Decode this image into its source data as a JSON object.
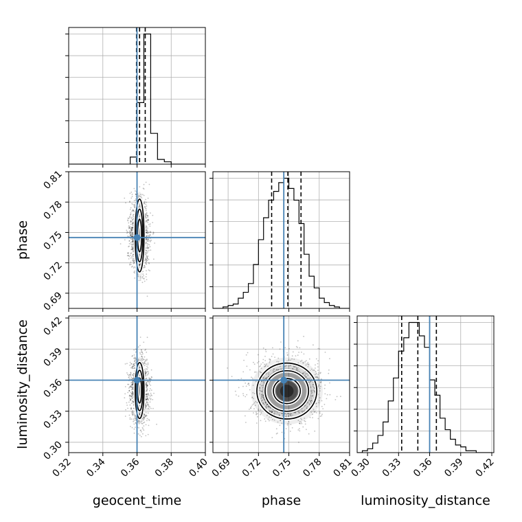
{
  "chart_data": {
    "type": "corner",
    "title": "",
    "parameters": [
      "geocent_time",
      "phase",
      "luminosity_distance"
    ],
    "ranges": {
      "geocent_time": [
        0.32,
        0.4
      ],
      "phase": [
        0.675,
        0.81
      ],
      "luminosity_distance": [
        0.29,
        0.422
      ]
    },
    "ticks": {
      "geocent_time": [
        "0.32",
        "0.34",
        "0.36",
        "0.38",
        "0.40"
      ],
      "phase": [
        "0.69",
        "0.72",
        "0.75",
        "0.78",
        "0.81"
      ],
      "luminosity_distance": [
        "0.30",
        "0.33",
        "0.36",
        "0.39",
        "0.42"
      ]
    },
    "truths": {
      "geocent_time": 0.36,
      "phase": 0.745,
      "luminosity_distance": 0.36
    },
    "quantiles": {
      "geocent_time": [
        0.3597,
        0.3615,
        0.3648
      ],
      "phase": [
        0.733,
        0.749,
        0.762
      ],
      "luminosity_distance": [
        0.333,
        0.3486,
        0.3665
      ]
    },
    "histograms": {
      "geocent_time": {
        "edges": [
          0.32,
          0.324,
          0.328,
          0.332,
          0.336,
          0.34,
          0.344,
          0.348,
          0.352,
          0.356,
          0.36,
          0.364,
          0.368,
          0.372,
          0.376,
          0.38,
          0.384,
          0.388,
          0.392,
          0.396,
          0.4
        ],
        "counts": [
          0,
          0,
          0,
          0,
          0,
          0,
          0,
          0,
          0,
          3,
          26,
          55,
          13,
          2,
          1,
          0,
          0,
          0,
          0,
          0
        ]
      },
      "phase": {
        "edges": [
          0.675,
          0.68,
          0.685,
          0.69,
          0.695,
          0.7,
          0.705,
          0.71,
          0.715,
          0.72,
          0.725,
          0.73,
          0.735,
          0.74,
          0.745,
          0.75,
          0.755,
          0.76,
          0.765,
          0.77,
          0.775,
          0.78,
          0.785,
          0.79,
          0.795,
          0.8,
          0.805,
          0.81
        ],
        "counts": [
          0,
          0,
          1,
          2,
          3,
          7,
          11,
          17,
          30,
          47,
          62,
          74,
          80,
          86,
          89,
          82,
          74,
          58,
          37,
          22,
          14,
          7,
          4,
          2,
          1,
          0,
          0
        ]
      },
      "luminosity_distance": {
        "edges": [
          0.29,
          0.295,
          0.3,
          0.305,
          0.31,
          0.315,
          0.32,
          0.325,
          0.33,
          0.335,
          0.34,
          0.345,
          0.35,
          0.355,
          0.36,
          0.365,
          0.37,
          0.375,
          0.38,
          0.385,
          0.39,
          0.395,
          0.4,
          0.405,
          0.41,
          0.415,
          0.42
        ],
        "counts": [
          0,
          1,
          2,
          5,
          9,
          16,
          27,
          39,
          53,
          60,
          68,
          68,
          61,
          55,
          38,
          30,
          18,
          12,
          7,
          4,
          3,
          1,
          1,
          0,
          0,
          0
        ]
      }
    },
    "pairs": [
      {
        "x": "geocent_time",
        "y": "phase",
        "center": [
          0.3615,
          0.747
        ],
        "contour_sigma": [
          0.0013,
          0.018
        ],
        "point_spread": [
          0.0022,
          0.014
        ]
      },
      {
        "x": "geocent_time",
        "y": "luminosity_distance",
        "center": [
          0.3615,
          0.35
        ],
        "contour_sigma": [
          0.0013,
          0.0135
        ],
        "point_spread": [
          0.0022,
          0.012
        ]
      },
      {
        "x": "phase",
        "y": "luminosity_distance",
        "center": [
          0.748,
          0.3495
        ],
        "contour_sigma": [
          0.0148,
          0.0135
        ],
        "point_spread": [
          0.013,
          0.012
        ]
      }
    ],
    "colors": {
      "truth": "#4682b4",
      "histogram": "#000000",
      "grid": "#b0b0b0",
      "density": "#000000"
    }
  }
}
